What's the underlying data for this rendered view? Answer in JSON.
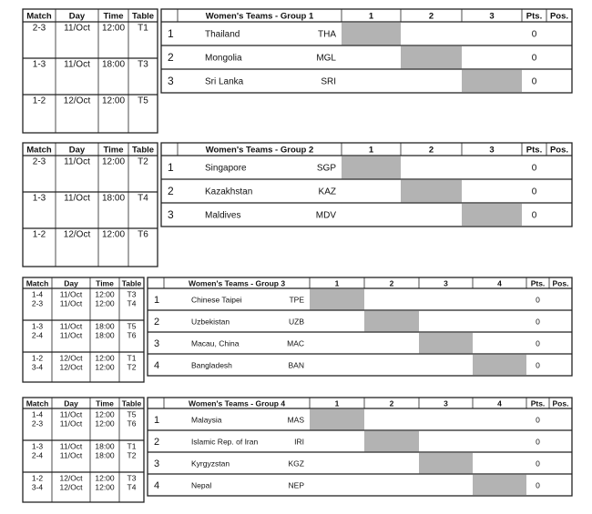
{
  "groups": [
    {
      "schedule": {
        "header": [
          "Match",
          "Day",
          "Time",
          "Table"
        ],
        "rows": [
          {
            "match": [
              "2-3"
            ],
            "day": [
              "11/Oct"
            ],
            "time": [
              "12:00"
            ],
            "table": [
              "T1"
            ]
          },
          {
            "match": [
              "1-3"
            ],
            "day": [
              "11/Oct"
            ],
            "time": [
              "18:00"
            ],
            "table": [
              "T3"
            ]
          },
          {
            "match": [
              "1-2"
            ],
            "day": [
              "12/Oct"
            ],
            "time": [
              "12:00"
            ],
            "table": [
              "T5"
            ]
          }
        ]
      },
      "standings": {
        "header": [
          "Women's Teams - Group 1",
          "1",
          "2",
          "3",
          "Pts.",
          "Pos."
        ],
        "rows": [
          {
            "no": 1,
            "team": "Thailand",
            "code": "THA",
            "pts": 0
          },
          {
            "no": 2,
            "team": "Mongolia",
            "code": "MGL",
            "pts": 0
          },
          {
            "no": 3,
            "team": "Sri Lanka",
            "code": "SRI",
            "pts": 0
          }
        ]
      }
    },
    {
      "schedule": {
        "header": [
          "Match",
          "Day",
          "Time",
          "Table"
        ],
        "rows": [
          {
            "match": [
              "2-3"
            ],
            "day": [
              "11/Oct"
            ],
            "time": [
              "12:00"
            ],
            "table": [
              "T2"
            ]
          },
          {
            "match": [
              "1-3"
            ],
            "day": [
              "11/Oct"
            ],
            "time": [
              "18:00"
            ],
            "table": [
              "T4"
            ]
          },
          {
            "match": [
              "1-2"
            ],
            "day": [
              "12/Oct"
            ],
            "time": [
              "12:00"
            ],
            "table": [
              "T6"
            ]
          }
        ]
      },
      "standings": {
        "header": [
          "Women's Teams - Group 2",
          "1",
          "2",
          "3",
          "Pts.",
          "Pos."
        ],
        "rows": [
          {
            "no": 1,
            "team": "Singapore",
            "code": "SGP",
            "pts": 0
          },
          {
            "no": 2,
            "team": "Kazakhstan",
            "code": "KAZ",
            "pts": 0
          },
          {
            "no": 3,
            "team": "Maldives",
            "code": "MDV",
            "pts": 0
          }
        ]
      }
    },
    {
      "schedule": {
        "header": [
          "Match",
          "Day",
          "Time",
          "Table"
        ],
        "rows": [
          {
            "match": [
              "1-4",
              "2-3"
            ],
            "day": [
              "11/Oct",
              "11/Oct"
            ],
            "time": [
              "12:00",
              "12:00"
            ],
            "table": [
              "T3",
              "T4"
            ]
          },
          {
            "match": [
              "1-3",
              "2-4"
            ],
            "day": [
              "11/Oct",
              "11/Oct"
            ],
            "time": [
              "18:00",
              "18:00"
            ],
            "table": [
              "T5",
              "T6"
            ]
          },
          {
            "match": [
              "1-2",
              "3-4"
            ],
            "day": [
              "12/Oct",
              "12/Oct"
            ],
            "time": [
              "12:00",
              "12:00"
            ],
            "table": [
              "T1",
              "T2"
            ]
          }
        ]
      },
      "standings": {
        "header": [
          "Women's Teams - Group 3",
          "1",
          "2",
          "3",
          "4",
          "Pts.",
          "Pos."
        ],
        "rows": [
          {
            "no": 1,
            "team": "Chinese Taipei",
            "code": "TPE",
            "pts": 0
          },
          {
            "no": 2,
            "team": "Uzbekistan",
            "code": "UZB",
            "pts": 0
          },
          {
            "no": 3,
            "team": "Macau, China",
            "code": "MAC",
            "pts": 0
          },
          {
            "no": 4,
            "team": "Bangladesh",
            "code": "BAN",
            "pts": 0
          }
        ]
      }
    },
    {
      "schedule": {
        "header": [
          "Match",
          "Day",
          "Time",
          "Table"
        ],
        "rows": [
          {
            "match": [
              "1-4",
              "2-3"
            ],
            "day": [
              "11/Oct",
              "11/Oct"
            ],
            "time": [
              "12:00",
              "12:00"
            ],
            "table": [
              "T5",
              "T6"
            ]
          },
          {
            "match": [
              "1-3",
              "2-4"
            ],
            "day": [
              "11/Oct",
              "11/Oct"
            ],
            "time": [
              "18:00",
              "18:00"
            ],
            "table": [
              "T1",
              "T2"
            ]
          },
          {
            "match": [
              "1-2",
              "3-4"
            ],
            "day": [
              "12/Oct",
              "12/Oct"
            ],
            "time": [
              "12:00",
              "12:00"
            ],
            "table": [
              "T3",
              "T4"
            ]
          }
        ]
      },
      "standings": {
        "header": [
          "Women's Teams - Group 4",
          "1",
          "2",
          "3",
          "4",
          "Pts.",
          "Pos."
        ],
        "rows": [
          {
            "no": 1,
            "team": "Malaysia",
            "code": "MAS",
            "pts": 0
          },
          {
            "no": 2,
            "team": "Islamic Rep. of Iran",
            "code": "IRI",
            "pts": 0
          },
          {
            "no": 3,
            "team": "Kyrgyzstan",
            "code": "KGZ",
            "pts": 0
          },
          {
            "no": 4,
            "team": "Nepal",
            "code": "NEP",
            "pts": 0
          }
        ]
      }
    }
  ]
}
